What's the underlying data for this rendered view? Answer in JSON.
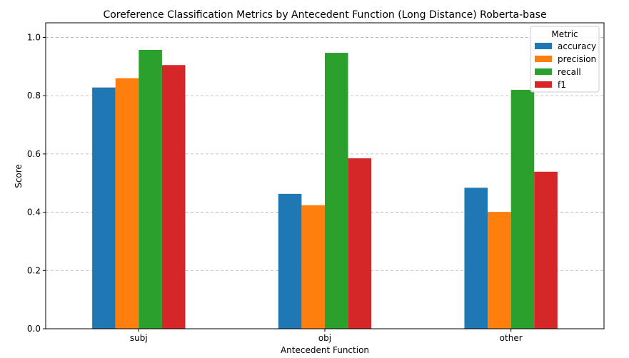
{
  "chart_data": {
    "type": "bar",
    "title": "Coreference Classification Metrics by Antecedent Function (Long Distance)  Roberta-base",
    "xlabel": "Antecedent Function",
    "ylabel": "Score",
    "categories": [
      "subj",
      "obj",
      "other"
    ],
    "ylim": [
      0,
      1.05
    ],
    "yticks": [
      "0.0",
      "0.2",
      "0.4",
      "0.6",
      "0.8",
      "1.0"
    ],
    "grid": "y-dashed",
    "legend": {
      "title": "Metric",
      "placement": "top-right"
    },
    "series": [
      {
        "name": "accuracy",
        "color": "#1f77b4",
        "values": [
          0.828,
          0.463,
          0.484
        ]
      },
      {
        "name": "precision",
        "color": "#ff7f0e",
        "values": [
          0.86,
          0.424,
          0.401
        ]
      },
      {
        "name": "recall",
        "color": "#2ca02c",
        "values": [
          0.957,
          0.947,
          0.82
        ]
      },
      {
        "name": "f1",
        "color": "#d62728",
        "values": [
          0.905,
          0.585,
          0.539
        ]
      }
    ]
  }
}
